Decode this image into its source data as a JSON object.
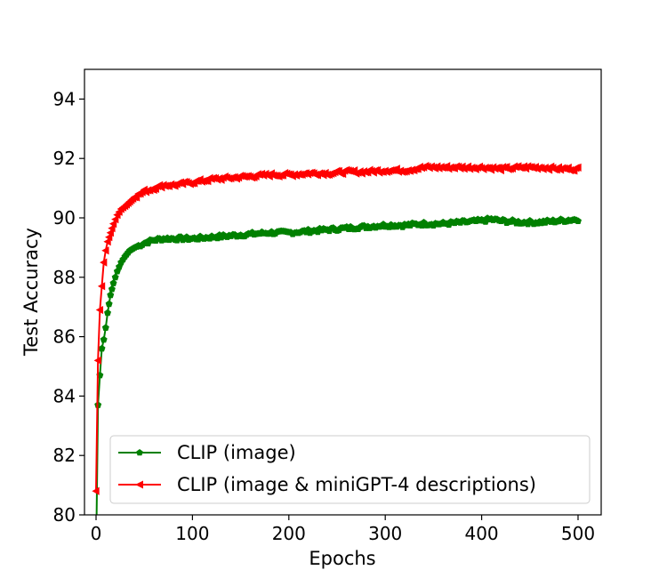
{
  "chart_data": {
    "type": "line",
    "xlabel": "Epochs",
    "ylabel": "Test Accuracy",
    "xlim": [
      -12,
      524
    ],
    "ylim": [
      80,
      95
    ],
    "xticks": [
      0,
      100,
      200,
      300,
      400,
      500
    ],
    "yticks": [
      80,
      82,
      84,
      86,
      88,
      90,
      92,
      94
    ],
    "grid": false,
    "legend_position": "lower-right",
    "series": [
      {
        "name": "CLIP (image)",
        "color": "#008000",
        "marker": "pentagon",
        "x": [
          0,
          2,
          4,
          6,
          8,
          10,
          12,
          15,
          18,
          22,
          26,
          30,
          35,
          40,
          50,
          60,
          70,
          80,
          100,
          120,
          140,
          160,
          180,
          200,
          220,
          240,
          260,
          280,
          300,
          320,
          340,
          360,
          380,
          400,
          410,
          420,
          440,
          460,
          480,
          500
        ],
        "y": [
          78.5,
          83.7,
          84.7,
          85.6,
          85.9,
          86.3,
          86.8,
          87.4,
          87.8,
          88.2,
          88.5,
          88.7,
          88.9,
          89.0,
          89.15,
          89.25,
          89.3,
          89.3,
          89.3,
          89.35,
          89.4,
          89.45,
          89.5,
          89.5,
          89.55,
          89.6,
          89.65,
          89.7,
          89.75,
          89.75,
          89.8,
          89.8,
          89.85,
          89.9,
          89.95,
          89.9,
          89.85,
          89.85,
          89.9,
          89.95
        ]
      },
      {
        "name": "CLIP (image & miniGPT-4 descriptions)",
        "color": "#ff0000",
        "marker": "triangle-left",
        "x": [
          0,
          2,
          4,
          6,
          8,
          10,
          12,
          15,
          18,
          22,
          26,
          30,
          35,
          40,
          50,
          60,
          70,
          80,
          100,
          120,
          140,
          160,
          180,
          200,
          220,
          240,
          260,
          280,
          300,
          320,
          340,
          360,
          380,
          400,
          420,
          440,
          460,
          480,
          500
        ],
        "y": [
          80.8,
          85.2,
          86.9,
          87.7,
          88.5,
          88.9,
          89.2,
          89.5,
          89.8,
          90.1,
          90.3,
          90.4,
          90.55,
          90.7,
          90.9,
          91.0,
          91.1,
          91.1,
          91.2,
          91.3,
          91.35,
          91.4,
          91.45,
          91.45,
          91.5,
          91.5,
          91.55,
          91.55,
          91.6,
          91.6,
          91.7,
          91.7,
          91.7,
          91.7,
          91.65,
          91.7,
          91.7,
          91.65,
          91.65
        ]
      }
    ]
  }
}
